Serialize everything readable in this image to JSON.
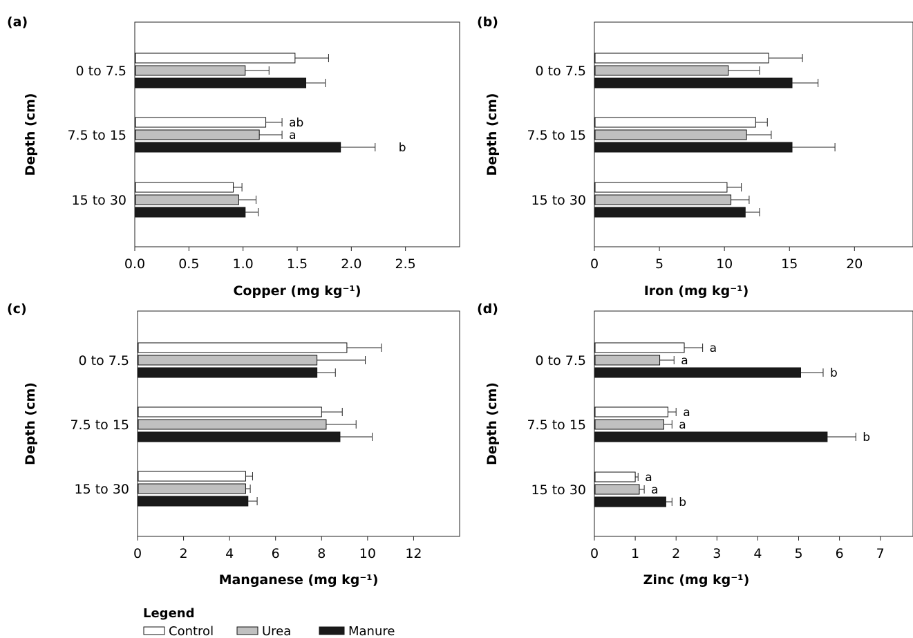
{
  "colors": {
    "Control": "#ffffff",
    "Urea": "#c0c0c0",
    "Manure": "#1a1a1a",
    "outline": "#111111"
  },
  "legend": {
    "title": "Legend",
    "items": [
      "Control",
      "Urea",
      "Manure"
    ]
  },
  "chart_data": [
    {
      "type": "bar",
      "orientation": "horizontal",
      "panel_label": "(a)",
      "xlabel": "Copper (mg kg⁻¹)",
      "ylabel": "Depth (cm)",
      "xlim": [
        0,
        3.0
      ],
      "xticks": [
        0,
        0.5,
        1,
        1.5,
        2,
        2.5
      ],
      "xtick_labels": [
        "0.0",
        "0.5",
        "1.0",
        "1.5",
        "2.0",
        "2.5"
      ],
      "categories": [
        "0 to 7.5",
        "7.5 to 15",
        "15 to 30"
      ],
      "series": [
        {
          "name": "Control",
          "values": [
            1.48,
            1.21,
            0.91
          ],
          "errors": [
            0.31,
            0.15,
            0.08
          ],
          "sig": [
            "",
            "ab",
            ""
          ]
        },
        {
          "name": "Urea",
          "values": [
            1.02,
            1.15,
            0.96
          ],
          "errors": [
            0.22,
            0.21,
            0.16
          ],
          "sig": [
            "",
            "a",
            ""
          ]
        },
        {
          "name": "Manure",
          "values": [
            1.58,
            1.9,
            1.02
          ],
          "errors": [
            0.18,
            0.32,
            0.12
          ],
          "sig": [
            "",
            "b",
            ""
          ]
        }
      ]
    },
    {
      "type": "bar",
      "orientation": "horizontal",
      "panel_label": "(b)",
      "xlabel": "Iron (mg kg⁻¹)",
      "ylabel": "Depth (cm)",
      "xlim": [
        0,
        24.5
      ],
      "xticks": [
        0,
        5,
        10,
        15,
        20
      ],
      "xtick_labels": [
        "0",
        "5",
        "10",
        "15",
        "20"
      ],
      "categories": [
        "0 to 7.5",
        "7.5 to 15",
        "15 to 30"
      ],
      "series": [
        {
          "name": "Control",
          "values": [
            13.4,
            12.4,
            10.2
          ],
          "errors": [
            2.6,
            0.9,
            1.1
          ],
          "sig": [
            "",
            "",
            ""
          ]
        },
        {
          "name": "Urea",
          "values": [
            10.3,
            11.7,
            10.5
          ],
          "errors": [
            2.4,
            1.9,
            1.4
          ],
          "sig": [
            "",
            "",
            ""
          ]
        },
        {
          "name": "Manure",
          "values": [
            15.2,
            15.2,
            11.6
          ],
          "errors": [
            2.0,
            3.3,
            1.1
          ],
          "sig": [
            "",
            "",
            ""
          ]
        }
      ]
    },
    {
      "type": "bar",
      "orientation": "horizontal",
      "panel_label": "(c)",
      "xlabel": "Manganese (mg kg⁻¹)",
      "ylabel": "Depth (cm)",
      "xlim": [
        0,
        14
      ],
      "xticks": [
        0,
        2,
        4,
        6,
        8,
        10,
        12
      ],
      "xtick_labels": [
        "0",
        "2",
        "4",
        "6",
        "8",
        "10",
        "12"
      ],
      "categories": [
        "0 to 7.5",
        "7.5 to 15",
        "15 to 30"
      ],
      "series": [
        {
          "name": "Control",
          "values": [
            9.1,
            8.0,
            4.7
          ],
          "errors": [
            1.5,
            0.9,
            0.3
          ],
          "sig": [
            "",
            "",
            ""
          ]
        },
        {
          "name": "Urea",
          "values": [
            7.8,
            8.2,
            4.7
          ],
          "errors": [
            2.1,
            1.3,
            0.2
          ],
          "sig": [
            "",
            "",
            ""
          ]
        },
        {
          "name": "Manure",
          "values": [
            7.8,
            8.8,
            4.8
          ],
          "errors": [
            0.8,
            1.4,
            0.4
          ],
          "sig": [
            "",
            "",
            ""
          ]
        }
      ]
    },
    {
      "type": "bar",
      "orientation": "horizontal",
      "panel_label": "(d)",
      "xlabel": "Zinc (mg kg⁻¹)",
      "ylabel": "Depth (cm)",
      "xlim": [
        0,
        7.8
      ],
      "xticks": [
        0,
        1,
        2,
        3,
        4,
        5,
        6,
        7
      ],
      "xtick_labels": [
        "0",
        "1",
        "2",
        "3",
        "4",
        "5",
        "6",
        "7"
      ],
      "categories": [
        "0 to 7.5",
        "7.5 to 15",
        "15 to 30"
      ],
      "series": [
        {
          "name": "Control",
          "values": [
            2.2,
            1.8,
            1.0
          ],
          "errors": [
            0.45,
            0.2,
            0.07
          ],
          "sig": [
            "a",
            "a",
            "a"
          ]
        },
        {
          "name": "Urea",
          "values": [
            1.6,
            1.7,
            1.1
          ],
          "errors": [
            0.35,
            0.2,
            0.12
          ],
          "sig": [
            "a",
            "a",
            "a"
          ]
        },
        {
          "name": "Manure",
          "values": [
            5.05,
            5.7,
            1.75
          ],
          "errors": [
            0.55,
            0.7,
            0.15
          ],
          "sig": [
            "b",
            "b",
            "b"
          ]
        }
      ]
    }
  ]
}
